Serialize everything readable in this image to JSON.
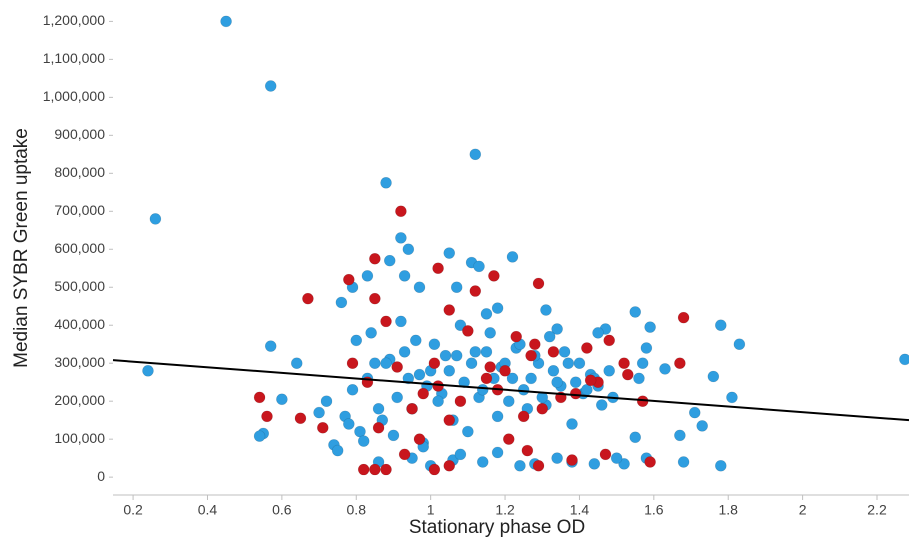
{
  "chart_data": {
    "type": "scatter",
    "x_label": "Stationary phase OD",
    "y_label": "Median SYBR Green uptake",
    "xlim": [
      0.146,
      2.286
    ],
    "ylim": [
      -47000,
      1230000
    ],
    "xticks": [
      0.2,
      0.4,
      0.6,
      0.8,
      1,
      1.2,
      1.4,
      1.6,
      1.8,
      2,
      2.2
    ],
    "yticks": [
      0,
      {
        "value": 100000,
        "label": "100,000"
      },
      {
        "value": 200000,
        "label": "200,000"
      },
      {
        "value": 300000,
        "label": "300,000"
      },
      {
        "value": 400000,
        "label": "400,000"
      },
      {
        "value": 500000,
        "label": "500,000"
      },
      {
        "value": 600000,
        "label": "600,000"
      },
      {
        "value": 700000,
        "label": "700,000"
      },
      {
        "value": 800000,
        "label": "800,000"
      },
      {
        "value": 900000,
        "label": "900,000"
      },
      {
        "value": 1000000,
        "label": "1,000,000"
      },
      {
        "value": 1100000,
        "label": "1,100,000"
      },
      {
        "value": 1200000,
        "label": "1,200,000"
      }
    ],
    "series": [
      {
        "color": "#2f9ee0",
        "x": [
          0.45,
          0.57,
          0.26,
          0.24,
          1.12,
          0.88,
          2.275,
          0.57,
          0.64,
          0.55,
          0.6,
          0.54,
          1.22,
          1.05,
          0.92,
          0.94,
          1.11,
          1.13,
          0.83,
          0.79,
          0.76,
          1.55,
          1.59,
          1.78,
          1.83,
          1.76,
          1.81,
          1.71,
          1.73,
          1.67,
          1.78,
          1.68,
          1.58,
          1.55,
          1.52,
          1.56,
          1.57,
          1.58,
          1.63,
          1.47,
          1.45,
          1.34,
          1.31,
          1.18,
          1.15,
          1.07,
          0.97,
          0.93,
          0.89,
          0.72,
          0.74,
          0.77,
          0.79,
          0.81,
          0.83,
          0.85,
          0.87,
          0.89,
          0.91,
          0.93,
          0.95,
          0.97,
          0.99,
          1.01,
          1.03,
          1.05,
          1.07,
          1.09,
          1.11,
          1.13,
          1.15,
          1.17,
          1.19,
          1.21,
          1.23,
          1.25,
          1.27,
          1.29,
          1.31,
          1.33,
          1.35,
          1.37,
          1.39,
          1.41,
          1.43,
          1.45,
          1.49,
          0.78,
          0.82,
          0.86,
          0.9,
          0.94,
          0.98,
          1.02,
          1.06,
          1.1,
          1.14,
          1.18,
          1.22,
          1.26,
          1.3,
          1.34,
          1.38,
          1.42,
          1.46,
          0.8,
          0.84,
          0.88,
          0.92,
          0.96,
          1.0,
          1.04,
          1.08,
          1.12,
          1.16,
          1.2,
          1.24,
          1.28,
          1.32,
          1.36,
          1.4,
          1.44,
          1.48,
          0.7,
          0.75,
          0.86,
          0.95,
          1.0,
          1.06,
          1.14,
          1.24,
          1.34,
          1.44,
          1.5,
          0.98,
          1.08,
          1.18,
          1.28,
          1.38
        ],
        "values": [
          1200000,
          1030000,
          680000,
          280000,
          850000,
          775000,
          310000,
          345000,
          300000,
          115000,
          205000,
          108000,
          580000,
          590000,
          630000,
          600000,
          565000,
          555000,
          530000,
          500000,
          460000,
          435000,
          395000,
          400000,
          350000,
          265000,
          210000,
          170000,
          135000,
          110000,
          30000,
          40000,
          50000,
          105000,
          35000,
          260000,
          300000,
          340000,
          285000,
          390000,
          380000,
          390000,
          440000,
          445000,
          430000,
          500000,
          500000,
          530000,
          570000,
          200000,
          85000,
          160000,
          230000,
          120000,
          260000,
          300000,
          150000,
          310000,
          210000,
          330000,
          180000,
          270000,
          240000,
          350000,
          220000,
          280000,
          320000,
          250000,
          300000,
          210000,
          330000,
          260000,
          290000,
          200000,
          340000,
          230000,
          260000,
          300000,
          190000,
          280000,
          240000,
          300000,
          250000,
          220000,
          270000,
          240000,
          210000,
          140000,
          95000,
          180000,
          110000,
          260000,
          90000,
          200000,
          150000,
          120000,
          230000,
          160000,
          260000,
          180000,
          210000,
          250000,
          140000,
          230000,
          190000,
          360000,
          380000,
          300000,
          410000,
          360000,
          280000,
          320000,
          400000,
          330000,
          380000,
          300000,
          350000,
          320000,
          370000,
          330000,
          300000,
          260000,
          280000,
          170000,
          70000,
          40000,
          50000,
          30000,
          45000,
          40000,
          30000,
          50000,
          35000,
          50000,
          80000,
          60000,
          65000,
          35000,
          40000
        ]
      },
      {
        "color": "#c8161d",
        "x": [
          0.92,
          0.85,
          1.02,
          1.17,
          1.29,
          0.78,
          0.67,
          1.68,
          1.67,
          0.54,
          0.56,
          0.65,
          0.71,
          0.82,
          0.85,
          0.88,
          1.01,
          1.05,
          1.59,
          1.47,
          1.38,
          1.29,
          1.26,
          1.21,
          1.1,
          1.23,
          1.28,
          1.33,
          1.2,
          1.15,
          1.02,
          0.98,
          0.95,
          0.91,
          0.88,
          0.85,
          1.05,
          1.12,
          1.42,
          1.48,
          1.52,
          1.45,
          1.35,
          1.3,
          1.25,
          1.08,
          1.01,
          0.83,
          0.79,
          0.86,
          0.93,
          0.97,
          1.16,
          1.39,
          1.53,
          1.57,
          1.43,
          1.27,
          1.18,
          1.05
        ],
        "values": [
          700000,
          575000,
          550000,
          530000,
          510000,
          520000,
          470000,
          420000,
          300000,
          210000,
          160000,
          155000,
          130000,
          20000,
          20000,
          20000,
          20000,
          30000,
          40000,
          60000,
          45000,
          30000,
          70000,
          100000,
          385000,
          370000,
          350000,
          330000,
          280000,
          260000,
          240000,
          220000,
          180000,
          290000,
          410000,
          470000,
          440000,
          490000,
          340000,
          360000,
          300000,
          250000,
          210000,
          180000,
          160000,
          200000,
          300000,
          250000,
          300000,
          130000,
          60000,
          100000,
          290000,
          220000,
          270000,
          200000,
          255000,
          320000,
          230000,
          150000
        ]
      }
    ],
    "trendline": {
      "color": "#000000",
      "x": [
        0.146,
        2.286
      ],
      "y": [
        308000,
        150000
      ]
    }
  }
}
